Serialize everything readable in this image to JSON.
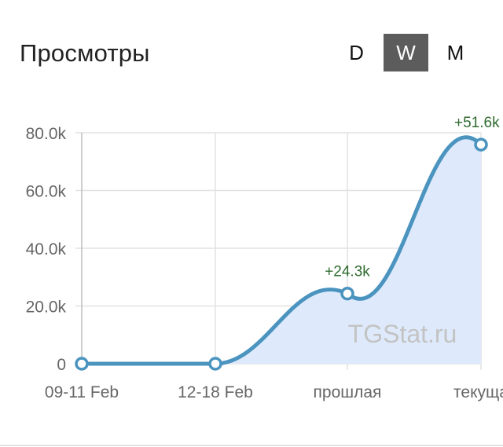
{
  "widget": {
    "title": "Просмотры",
    "periods": [
      {
        "label": "D",
        "active": false
      },
      {
        "label": "W",
        "active": true
      },
      {
        "label": "M",
        "active": false
      }
    ],
    "watermark": "TGStat.ru"
  },
  "chart_data": {
    "type": "area",
    "categories": [
      "09-11 Feb",
      "12-18 Feb",
      "прошлая",
      "текуща"
    ],
    "series": [
      {
        "values": [
          0,
          0,
          24300,
          75900
        ],
        "color": "#4b94c0",
        "fill": "#deeafb"
      }
    ],
    "point_labels": [
      "",
      "",
      "+24.3k",
      "+51.6k"
    ],
    "y_ticks": [
      0,
      20000,
      40000,
      60000,
      80000
    ],
    "y_tick_labels": [
      "0",
      "20.0k",
      "40.0k",
      "60.0k",
      "80.0k"
    ],
    "ylim": [
      0,
      80000
    ],
    "grid": true,
    "label_color": "#2f6b2f"
  }
}
